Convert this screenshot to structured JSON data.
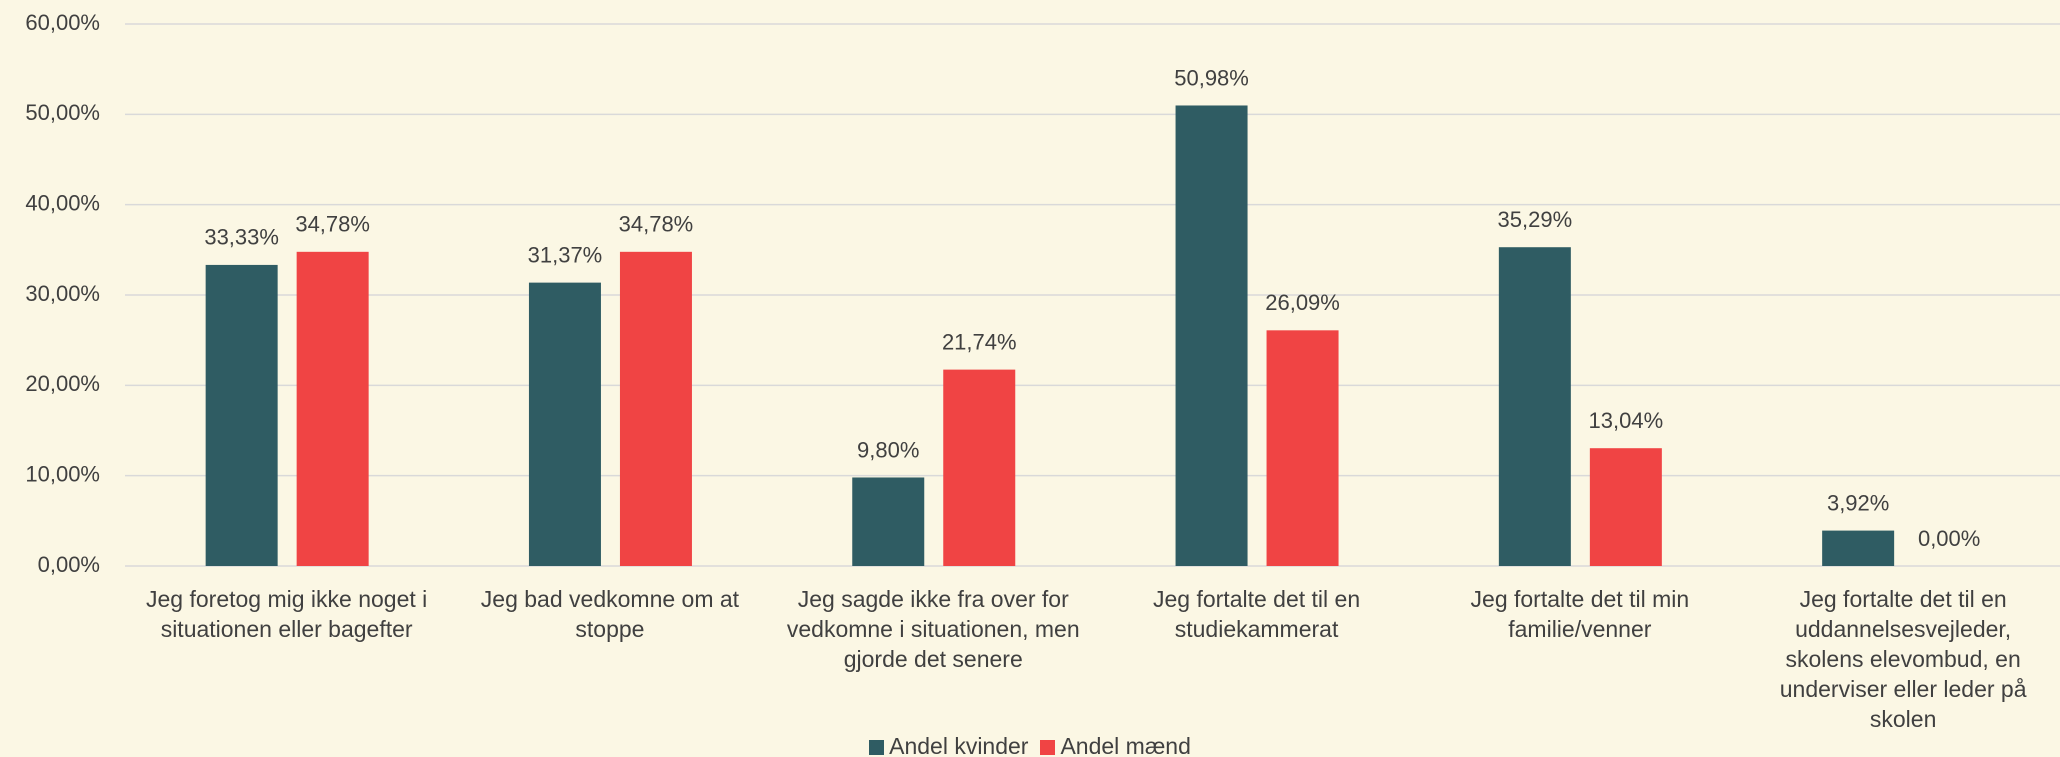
{
  "chart_data": {
    "type": "bar",
    "categories": [
      "Jeg foretog mig ikke noget i situationen eller bagefter",
      "Jeg bad vedkomne om at stoppe",
      "Jeg sagde ikke fra over for vedkomne i situationen, men gjorde det senere",
      "Jeg fortalte det til en studiekammerat",
      "Jeg fortalte det til min familie/venner",
      "Jeg fortalte det til en uddannelsesvejleder, skolens elevombud, en underviser eller leder på skolen"
    ],
    "series": [
      {
        "name": "Andel kvinder",
        "color": "#2f5c63",
        "values": [
          33.33,
          31.37,
          9.8,
          50.98,
          35.29,
          3.92
        ],
        "value_labels": [
          "33,33%",
          "31,37%",
          "9,80%",
          "50,98%",
          "35,29%",
          "3,92%"
        ]
      },
      {
        "name": "Andel mænd",
        "color": "#f04444",
        "values": [
          34.78,
          34.78,
          21.74,
          26.09,
          13.04,
          0
        ],
        "value_labels": [
          "34,78%",
          "34,78%",
          "21,74%",
          "26,09%",
          "13,04%",
          "0,00%"
        ]
      }
    ],
    "ylim": [
      0,
      60
    ],
    "yticks": [
      {
        "value": 0,
        "label": "0,00%"
      },
      {
        "value": 10,
        "label": "10,00%"
      },
      {
        "value": 20,
        "label": "20,00%"
      },
      {
        "value": 30,
        "label": "30,00%"
      },
      {
        "value": 40,
        "label": "40,00%"
      },
      {
        "value": 50,
        "label": "50,00%"
      },
      {
        "value": 60,
        "label": "60,00%"
      }
    ],
    "grid": true,
    "legend": "bottom"
  }
}
